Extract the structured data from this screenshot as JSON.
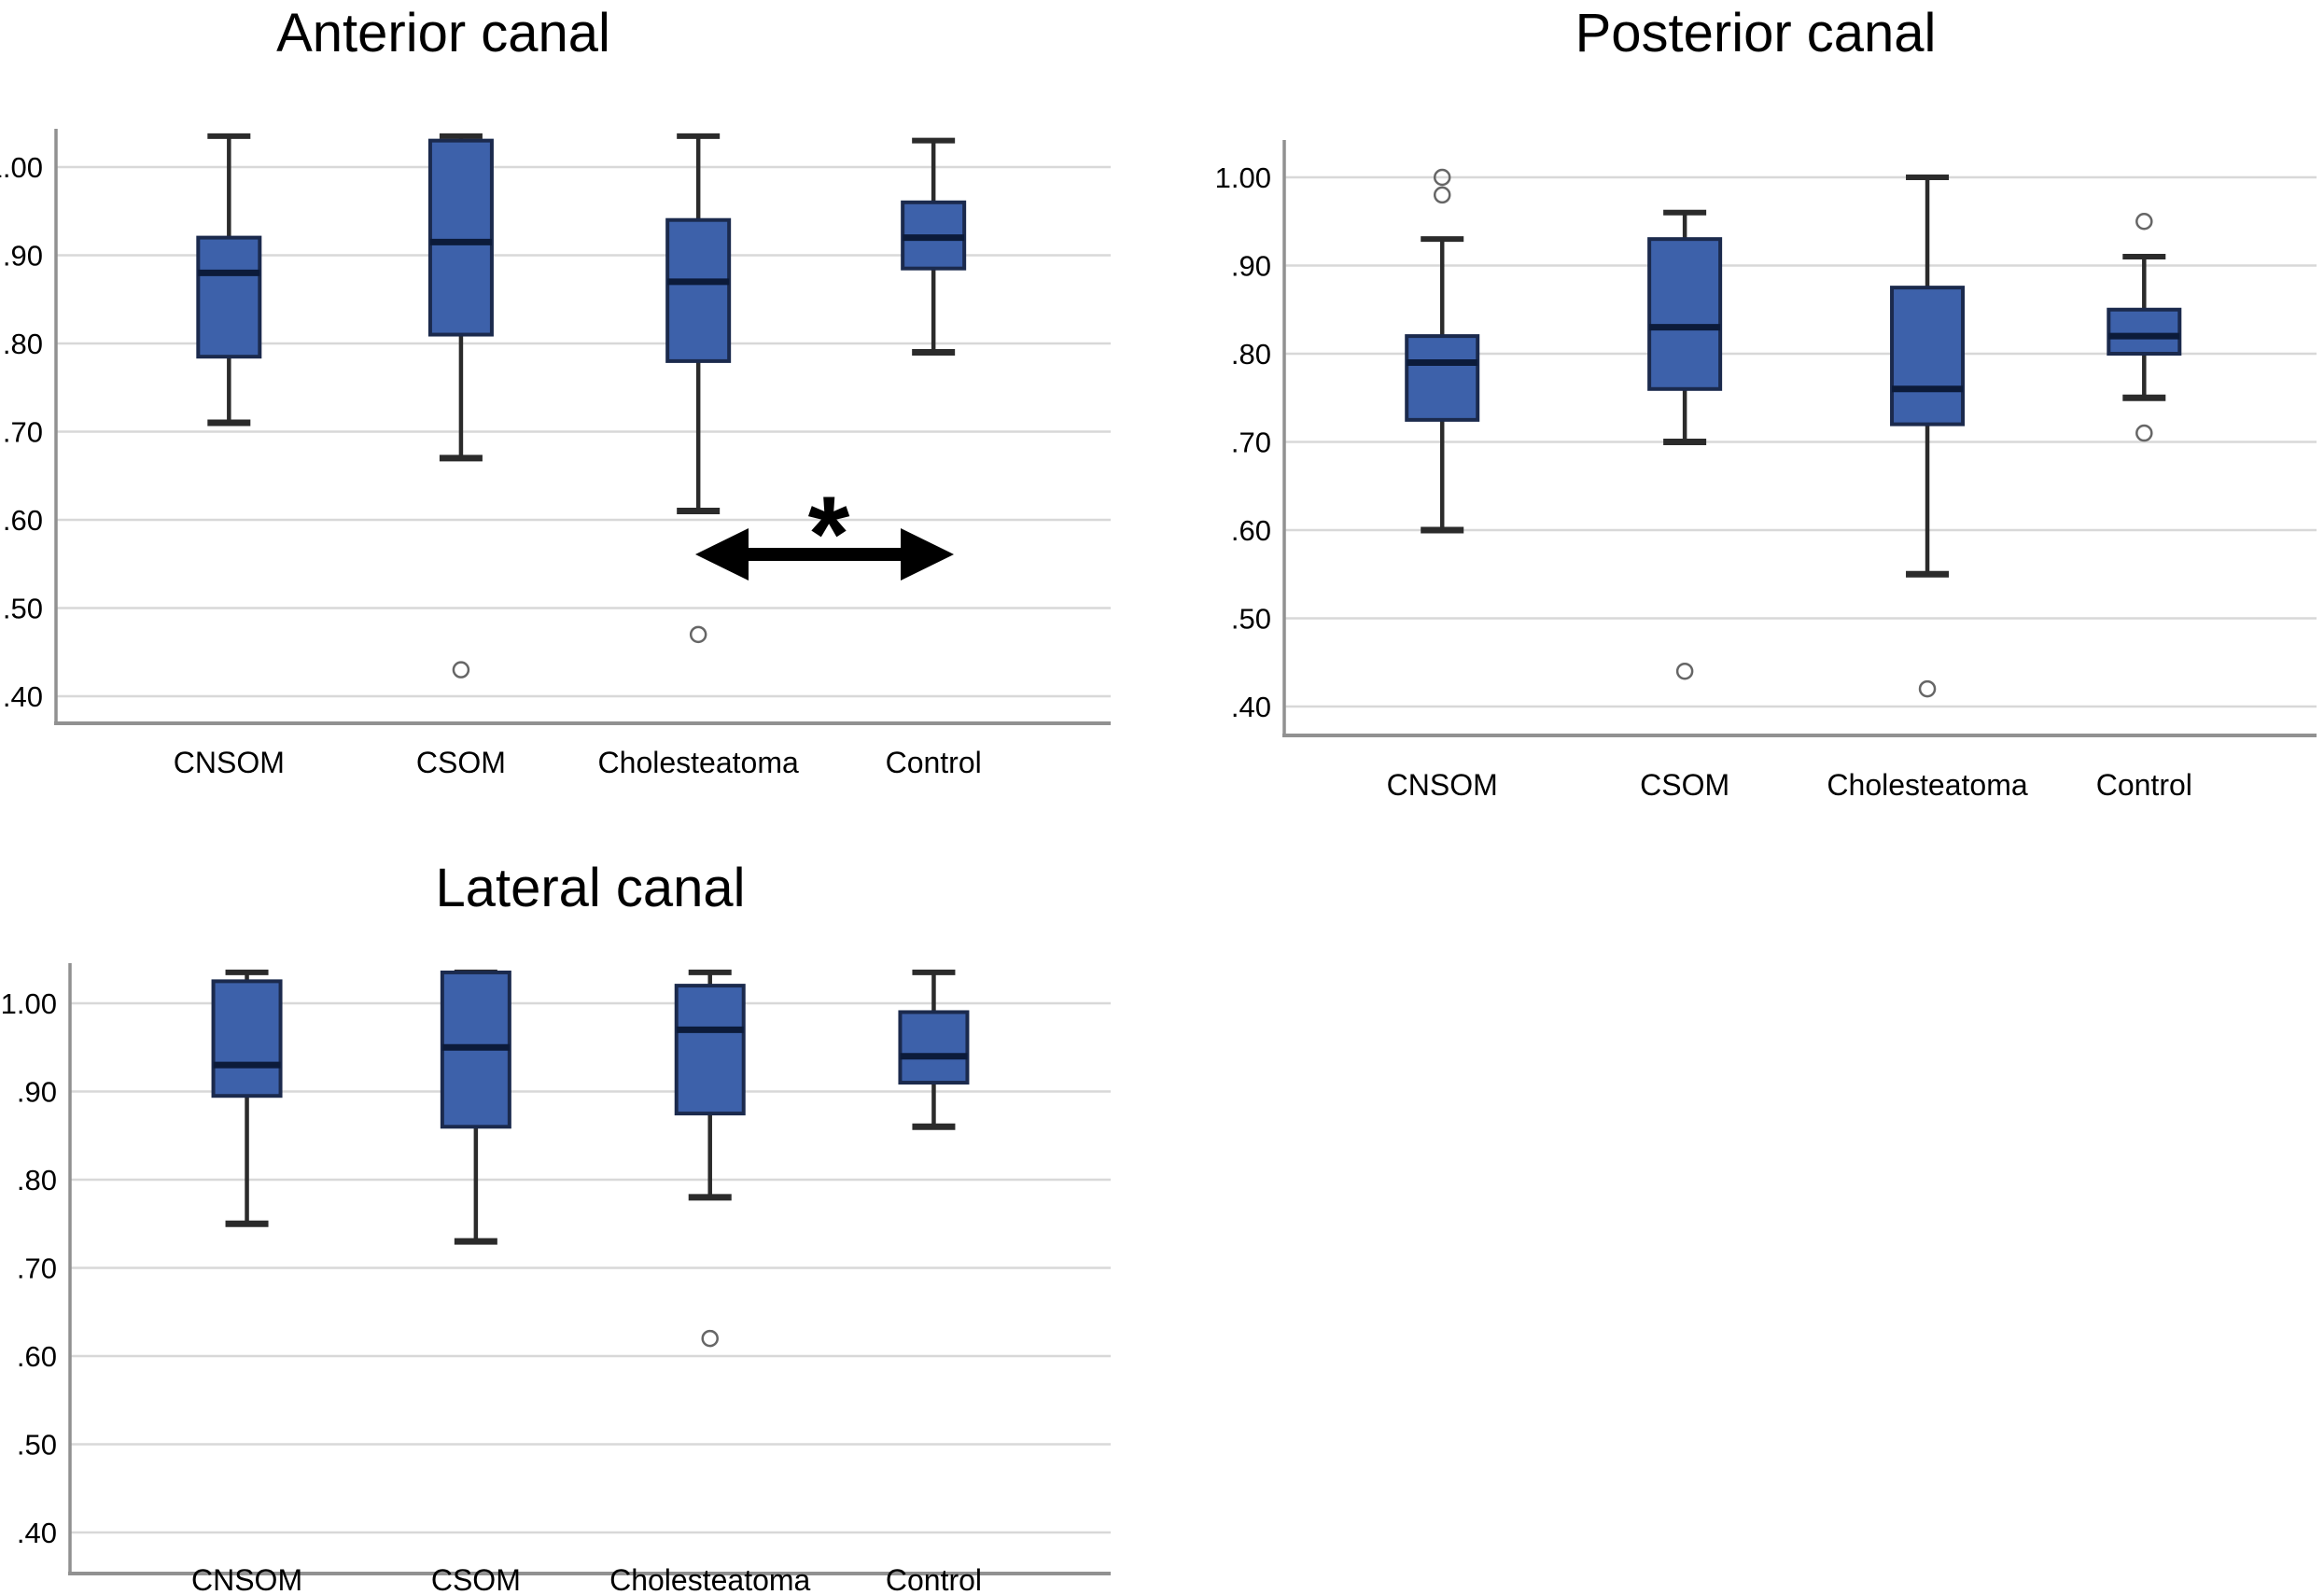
{
  "page": {
    "background": "#ffffff"
  },
  "palette": {
    "box_fill": "#3d61aa",
    "box_stroke": "#1b2a4d",
    "median_line": "#0c1b3a",
    "whisker": "#2b2b2b",
    "gridline": "#d8d8d8",
    "axis": "#919191",
    "outlier_stroke": "#666666",
    "text": "#000000",
    "annotation": "#000000"
  },
  "chart_data": [
    {
      "type": "box",
      "title": "Anterior canal",
      "xlabel": "",
      "ylabel": "",
      "grid": true,
      "legend": "none",
      "ylim": [
        0.37,
        1.06
      ],
      "y_ticks": [
        {
          "label": "1.00",
          "value": 1.0
        },
        {
          "label": ".90",
          "value": 0.9
        },
        {
          "label": ".80",
          "value": 0.8
        },
        {
          "label": ".70",
          "value": 0.7
        },
        {
          "label": ".60",
          "value": 0.6
        },
        {
          "label": ".50",
          "value": 0.5
        },
        {
          "label": ".40",
          "value": 0.4
        }
      ],
      "categories": [
        "CNSOM",
        "CSOM",
        "Cholesteatoma",
        "Control"
      ],
      "series": [
        {
          "category": "CNSOM",
          "whisker_low": 0.71,
          "q1": 0.785,
          "median": 0.88,
          "q3": 0.92,
          "whisker_high": 1.035,
          "outliers": []
        },
        {
          "category": "CSOM",
          "whisker_low": 0.67,
          "q1": 0.81,
          "median": 0.915,
          "q3": 1.03,
          "whisker_high": 1.035,
          "outliers": [
            0.43
          ]
        },
        {
          "category": "Cholesteatoma",
          "whisker_low": 0.61,
          "q1": 0.78,
          "median": 0.87,
          "q3": 0.94,
          "whisker_high": 1.035,
          "outliers": [
            0.47
          ]
        },
        {
          "category": "Control",
          "whisker_low": 0.79,
          "q1": 0.885,
          "median": 0.92,
          "q3": 0.96,
          "whisker_high": 1.03,
          "outliers": []
        }
      ],
      "annotation": {
        "type": "double-arrow",
        "symbol": "*",
        "between": [
          "Cholesteatoma",
          "Control"
        ],
        "at_value": 0.56
      }
    },
    {
      "type": "box",
      "title": "Posterior canal",
      "xlabel": "",
      "ylabel": "",
      "grid": true,
      "legend": "none",
      "ylim": [
        0.37,
        1.06
      ],
      "y_ticks": [
        {
          "label": "1.00",
          "value": 1.0
        },
        {
          "label": ".90",
          "value": 0.9
        },
        {
          "label": ".80",
          "value": 0.8
        },
        {
          "label": ".70",
          "value": 0.7
        },
        {
          "label": ".60",
          "value": 0.6
        },
        {
          "label": ".50",
          "value": 0.5
        },
        {
          "label": ".40",
          "value": 0.4
        }
      ],
      "categories": [
        "CNSOM",
        "CSOM",
        "Cholesteatoma",
        "Control"
      ],
      "series": [
        {
          "category": "CNSOM",
          "whisker_low": 0.6,
          "q1": 0.725,
          "median": 0.79,
          "q3": 0.82,
          "whisker_high": 0.93,
          "outliers": [
            0.98,
            1.0
          ]
        },
        {
          "category": "CSOM",
          "whisker_low": 0.7,
          "q1": 0.76,
          "median": 0.83,
          "q3": 0.93,
          "whisker_high": 0.96,
          "outliers": [
            0.44
          ]
        },
        {
          "category": "Cholesteatoma",
          "whisker_low": 0.55,
          "q1": 0.72,
          "median": 0.76,
          "q3": 0.875,
          "whisker_high": 1.0,
          "outliers": [
            0.42
          ]
        },
        {
          "category": "Control",
          "whisker_low": 0.75,
          "q1": 0.8,
          "median": 0.82,
          "q3": 0.85,
          "whisker_high": 0.91,
          "outliers": [
            0.95,
            0.71
          ]
        }
      ],
      "annotation": null
    },
    {
      "type": "box",
      "title": "Lateral canal",
      "xlabel": "",
      "ylabel": "",
      "grid": true,
      "legend": "none",
      "ylim": [
        0.37,
        1.06
      ],
      "y_ticks": [
        {
          "label": "1.00",
          "value": 1.0
        },
        {
          "label": ".90",
          "value": 0.9
        },
        {
          "label": ".80",
          "value": 0.8
        },
        {
          "label": ".70",
          "value": 0.7
        },
        {
          "label": ".60",
          "value": 0.6
        },
        {
          "label": ".50",
          "value": 0.5
        },
        {
          "label": ".40",
          "value": 0.4
        }
      ],
      "categories": [
        "CNSOM",
        "CSOM",
        "Cholesteatoma",
        "Control"
      ],
      "series": [
        {
          "category": "CNSOM",
          "whisker_low": 0.75,
          "q1": 0.895,
          "median": 0.93,
          "q3": 1.025,
          "whisker_high": 1.035,
          "outliers": []
        },
        {
          "category": "CSOM",
          "whisker_low": 0.73,
          "q1": 0.86,
          "median": 0.95,
          "q3": 1.035,
          "whisker_high": 1.035,
          "outliers": []
        },
        {
          "category": "Cholesteatoma",
          "whisker_low": 0.78,
          "q1": 0.875,
          "median": 0.97,
          "q3": 1.02,
          "whisker_high": 1.035,
          "outliers": [
            0.62
          ]
        },
        {
          "category": "Control",
          "whisker_low": 0.86,
          "q1": 0.91,
          "median": 0.94,
          "q3": 0.99,
          "whisker_high": 1.035,
          "outliers": []
        }
      ],
      "annotation": null
    }
  ]
}
